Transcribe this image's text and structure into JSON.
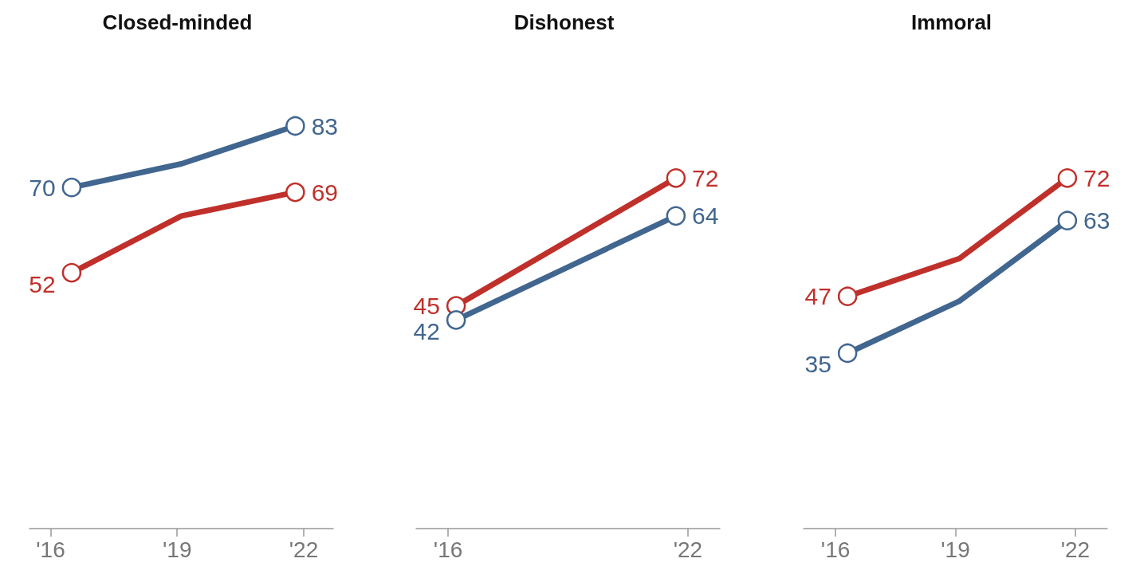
{
  "chart_data": [
    {
      "type": "line",
      "title": "Closed-minded",
      "x": [
        2016.5,
        2019.1,
        2021.8
      ],
      "xlim": [
        2015.5,
        2022.7
      ],
      "xticks": [
        {
          "value": 2016,
          "label": "'16"
        },
        {
          "value": 2019,
          "label": "'19"
        },
        {
          "value": 2022,
          "label": "'22"
        }
      ],
      "tick_labels": "x",
      "marker": "circle",
      "grid": false,
      "series": [
        {
          "color": "#41668f",
          "values": [
            70,
            75,
            83
          ],
          "value_labels": [
            "70",
            null,
            "83"
          ]
        },
        {
          "color": "#c0302b",
          "values": [
            52,
            64,
            69
          ],
          "value_labels": [
            "52",
            null,
            "69"
          ]
        }
      ]
    },
    {
      "type": "line",
      "title": "Dishonest",
      "x": [
        2016.2,
        2021.7
      ],
      "xlim": [
        2015.2,
        2022.8
      ],
      "xticks": [
        {
          "value": 2016,
          "label": "'16"
        },
        {
          "value": 2022,
          "label": "'22"
        }
      ],
      "tick_labels": "x",
      "marker": "circle",
      "grid": false,
      "series": [
        {
          "color": "#c0302b",
          "values": [
            45,
            72
          ],
          "value_labels": [
            "45",
            "72"
          ]
        },
        {
          "color": "#41668f",
          "values": [
            42,
            64
          ],
          "value_labels": [
            "42",
            "64"
          ]
        }
      ]
    },
    {
      "type": "line",
      "title": "Immoral",
      "x": [
        2016.3,
        2019.1,
        2021.8
      ],
      "xlim": [
        2015.2,
        2022.8
      ],
      "xticks": [
        {
          "value": 2016,
          "label": "'16"
        },
        {
          "value": 2019,
          "label": "'19"
        },
        {
          "value": 2022,
          "label": "'22"
        }
      ],
      "tick_labels": "x",
      "marker": "circle",
      "grid": false,
      "series": [
        {
          "color": "#c0302b",
          "values": [
            47,
            55,
            72
          ],
          "value_labels": [
            "47",
            null,
            "72"
          ]
        },
        {
          "color": "#41668f",
          "values": [
            35,
            46,
            63
          ],
          "value_labels": [
            "35",
            null,
            "63"
          ]
        }
      ]
    }
  ]
}
